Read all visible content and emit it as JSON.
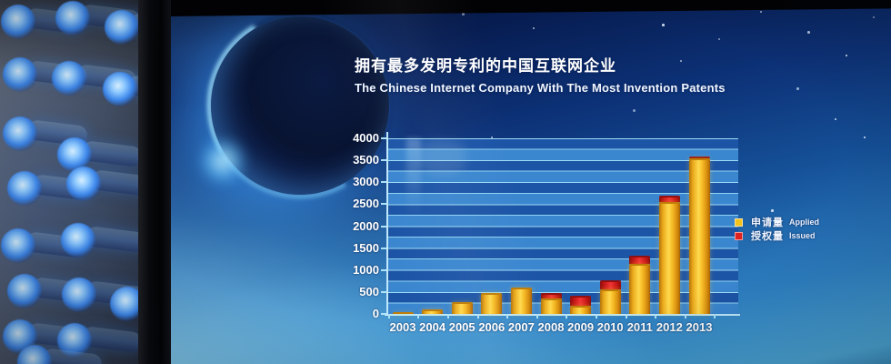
{
  "screen": {
    "title_zh": "拥有最多发明专利的中国互联网企业",
    "title_en": "The Chinese Internet Company With The Most Invention Patents"
  },
  "legend": {
    "applied_zh": "申请量",
    "applied_en": "Applied",
    "issued_zh": "授权量",
    "issued_en": "Issued"
  },
  "colors": {
    "applied": "#f5c11c",
    "issued": "#df2020",
    "grid_line": "#9fdcf7",
    "band_dark": "#1c54a6",
    "band_light": "#3a86cf",
    "axis": "#bfe9fb"
  },
  "chart_data": {
    "type": "bar",
    "stacked": true,
    "title": "拥有最多发明专利的中国互联网企业",
    "subtitle": "The Chinese Internet Company With The Most Invention Patents",
    "xlabel": "",
    "ylabel": "",
    "ylim": [
      0,
      4000
    ],
    "ytick_interval": 500,
    "yticks": [
      "0",
      "500",
      "1000",
      "1500",
      "2000",
      "2500",
      "3000",
      "3500",
      "4000"
    ],
    "grid": "horizontal-bands-every-250",
    "legend_position": "right",
    "categories": [
      "2003",
      "2004",
      "2005",
      "2006",
      "2007",
      "2008",
      "2009",
      "2010",
      "2011",
      "2012",
      "2013"
    ],
    "series": [
      {
        "name": "申请量 Applied",
        "color": "#f5c11c",
        "values": [
          60,
          140,
          320,
          510,
          650,
          400,
          220,
          600,
          1180,
          2590,
          3580
        ]
      },
      {
        "name": "授权量 Issued",
        "color": "#df2020",
        "values": [
          0,
          0,
          0,
          0,
          0,
          150,
          280,
          260,
          240,
          190,
          90
        ]
      }
    ]
  }
}
